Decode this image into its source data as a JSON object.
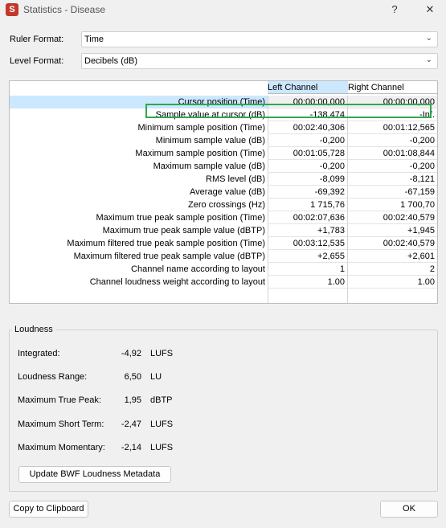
{
  "window": {
    "title": "Statistics - Disease",
    "logo_letter": "S",
    "help": "?",
    "close": "✕"
  },
  "ruler_format": {
    "label": "Ruler Format:",
    "value": "Time"
  },
  "level_format": {
    "label": "Level Format:",
    "value": "Decibels (dB)"
  },
  "table": {
    "columns": [
      "Left Channel",
      "Right Channel"
    ],
    "rows": [
      {
        "label": "Cursor position (Time)",
        "left": "00:00:00,000",
        "right": "00:00:00,000"
      },
      {
        "label": "Sample value at cursor (dB)",
        "left": "-138,474",
        "right": "-Inf."
      },
      {
        "label": "Minimum sample position (Time)",
        "left": "00:02:40,306",
        "right": "00:01:12,565"
      },
      {
        "label": "Minimum sample value (dB)",
        "left": "-0,200",
        "right": "-0,200"
      },
      {
        "label": "Maximum sample position (Time)",
        "left": "00:01:05,728",
        "right": "00:01:08,844"
      },
      {
        "label": "Maximum sample value (dB)",
        "left": "-0,200",
        "right": "-0,200"
      },
      {
        "label": "RMS level (dB)",
        "left": "-8,099",
        "right": "-8,121"
      },
      {
        "label": "Average value (dB)",
        "left": "-69,392",
        "right": "-67,159"
      },
      {
        "label": "Zero crossings (Hz)",
        "left": "1 715,76",
        "right": "1 700,70"
      },
      {
        "label": "Maximum true peak sample position (Time)",
        "left": "00:02:07,636",
        "right": "00:02:40,579"
      },
      {
        "label": "Maximum true peak sample value (dBTP)",
        "left": "+1,783",
        "right": "+1,945"
      },
      {
        "label": "Maximum filtered true peak sample position (Time)",
        "left": "00:03:12,535",
        "right": "00:02:40,579"
      },
      {
        "label": "Maximum filtered true peak sample value (dBTP)",
        "left": "+2,655",
        "right": "+2,601"
      },
      {
        "label": "Channel name according to layout",
        "left": "1",
        "right": "2"
      },
      {
        "label": "Channel loudness weight according to layout",
        "left": "1.00",
        "right": "1.00"
      }
    ]
  },
  "loudness": {
    "title": "Loudness",
    "items": [
      {
        "label": "Integrated:",
        "value": "-4,92",
        "unit": "LUFS"
      },
      {
        "label": "Loudness Range:",
        "value": "6,50",
        "unit": "LU"
      },
      {
        "label": "Maximum True Peak:",
        "value": "1,95",
        "unit": "dBTP"
      },
      {
        "label": "Maximum Short Term:",
        "value": "-2,47",
        "unit": "LUFS"
      },
      {
        "label": "Maximum Momentary:",
        "value": "-2,14",
        "unit": "LUFS"
      }
    ],
    "update_button": "Update BWF Loudness Metadata"
  },
  "buttons": {
    "copy": "Copy to Clipboard",
    "ok": "OK"
  },
  "colors": {
    "selection": "#cce8ff",
    "highlight_box": "#2fa84f"
  }
}
